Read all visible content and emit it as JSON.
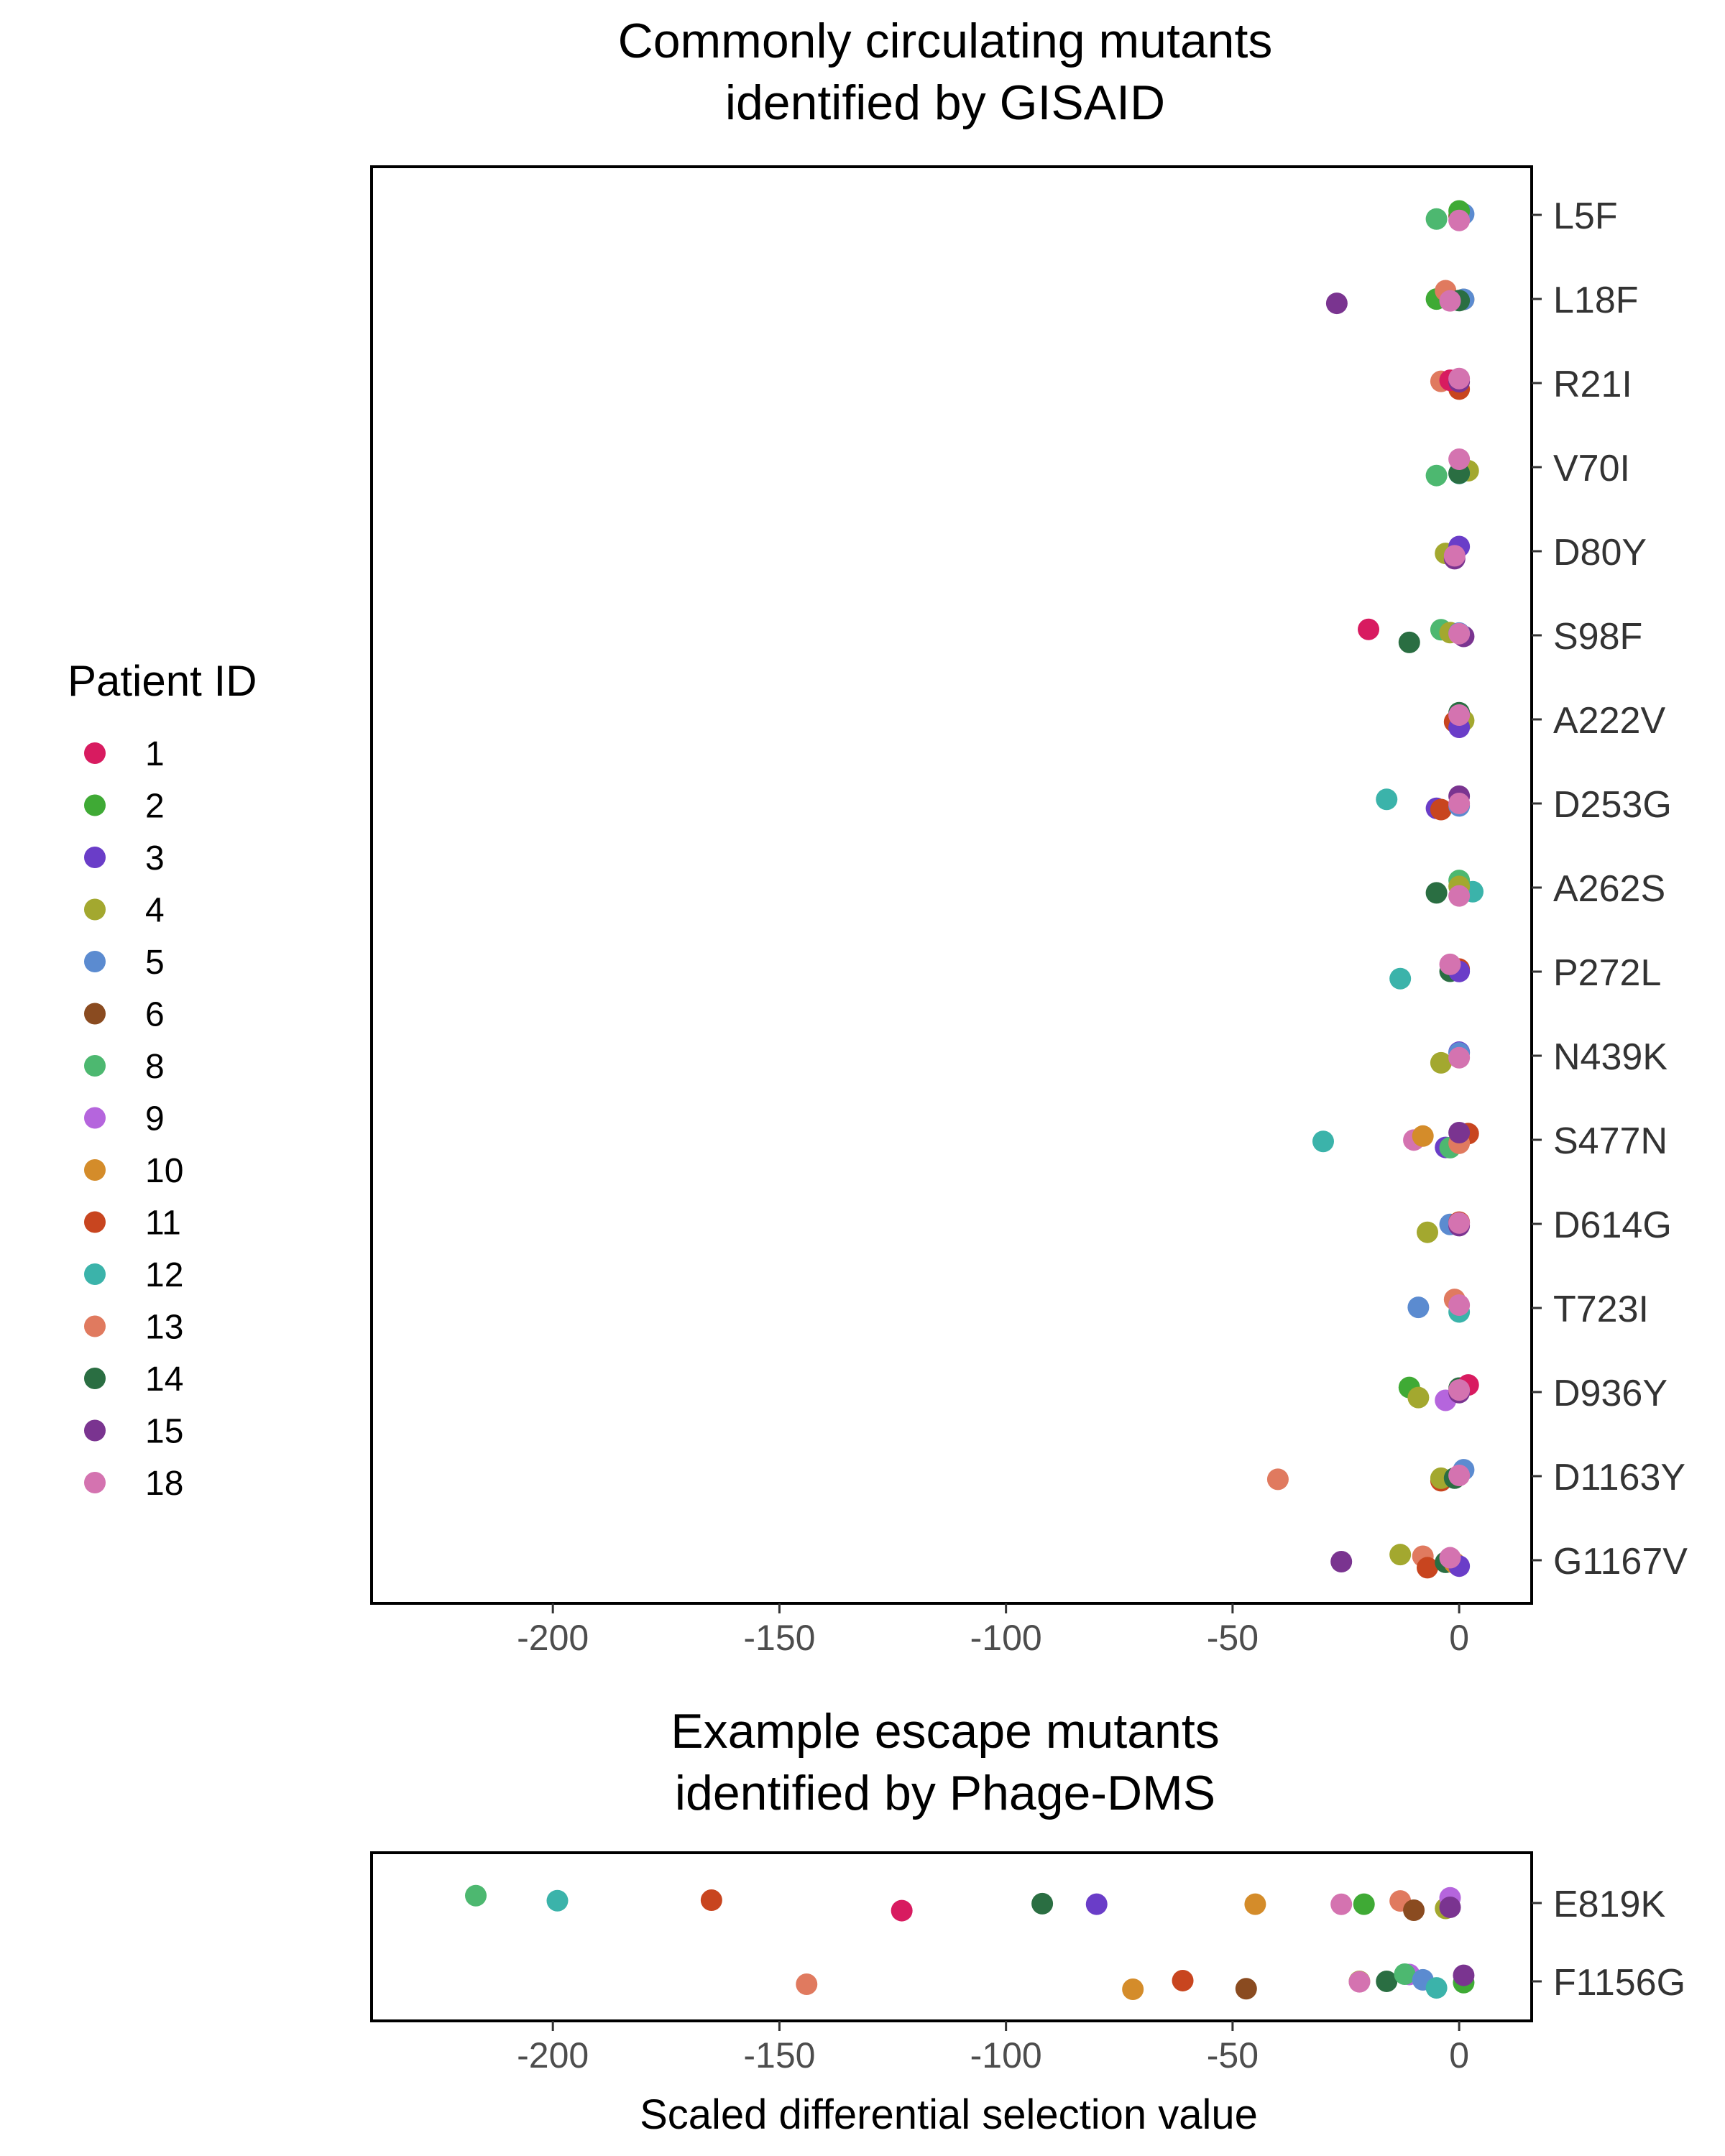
{
  "legend": {
    "title": "Patient ID",
    "items": [
      {
        "id": "1",
        "color": "#D81B60"
      },
      {
        "id": "2",
        "color": "#3FAA35"
      },
      {
        "id": "3",
        "color": "#6A3DC8"
      },
      {
        "id": "4",
        "color": "#A3A82F"
      },
      {
        "id": "5",
        "color": "#5B8BD0"
      },
      {
        "id": "6",
        "color": "#8A4B20"
      },
      {
        "id": "8",
        "color": "#4DB870"
      },
      {
        "id": "9",
        "color": "#B565DD"
      },
      {
        "id": "10",
        "color": "#D48C2A"
      },
      {
        "id": "11",
        "color": "#C8451F"
      },
      {
        "id": "12",
        "color": "#3BB3AA"
      },
      {
        "id": "13",
        "color": "#E07A5F"
      },
      {
        "id": "14",
        "color": "#2A6E42"
      },
      {
        "id": "15",
        "color": "#7A3490"
      },
      {
        "id": "18",
        "color": "#D473B0"
      }
    ]
  },
  "chart_data": [
    {
      "type": "scatter",
      "title": [
        "Commonly circulating mutants",
        "identified by GISAID"
      ],
      "xlabel": "",
      "xlim": [
        -240,
        16
      ],
      "xticks": [
        -200,
        -150,
        -100,
        -50,
        0
      ],
      "xtick_labels": [
        "-200",
        "-150",
        "-100",
        "-50",
        "0"
      ],
      "categories": [
        "L5F",
        "L18F",
        "R21I",
        "V70I",
        "D80Y",
        "S98F",
        "A222V",
        "D253G",
        "A262S",
        "P272L",
        "N439K",
        "S477N",
        "D614G",
        "T723I",
        "D936Y",
        "D1163Y",
        "G1167V"
      ],
      "points": [
        {
          "m": "L5F",
          "p": "8",
          "x": -5
        },
        {
          "m": "L5F",
          "p": "6",
          "x": 0
        },
        {
          "m": "L5F",
          "p": "5",
          "x": 1
        },
        {
          "m": "L5F",
          "p": "2",
          "x": 0
        },
        {
          "m": "L5F",
          "p": "18",
          "x": 0
        },
        {
          "m": "L18F",
          "p": "15",
          "x": -27
        },
        {
          "m": "L18F",
          "p": "2",
          "x": -5
        },
        {
          "m": "L18F",
          "p": "10",
          "x": 1
        },
        {
          "m": "L18F",
          "p": "5",
          "x": 1
        },
        {
          "m": "L18F",
          "p": "13",
          "x": -3
        },
        {
          "m": "L18F",
          "p": "14",
          "x": 0
        },
        {
          "m": "L18F",
          "p": "18",
          "x": -2
        },
        {
          "m": "R21I",
          "p": "13",
          "x": -4
        },
        {
          "m": "R21I",
          "p": "11",
          "x": 0
        },
        {
          "m": "R21I",
          "p": "1",
          "x": -2
        },
        {
          "m": "R21I",
          "p": "15",
          "x": 0
        },
        {
          "m": "R21I",
          "p": "18",
          "x": 0
        },
        {
          "m": "V70I",
          "p": "8",
          "x": -5
        },
        {
          "m": "V70I",
          "p": "4",
          "x": 2
        },
        {
          "m": "V70I",
          "p": "12",
          "x": 0
        },
        {
          "m": "V70I",
          "p": "14",
          "x": 0
        },
        {
          "m": "V70I",
          "p": "18",
          "x": 0
        },
        {
          "m": "D80Y",
          "p": "4",
          "x": -3
        },
        {
          "m": "D80Y",
          "p": "15",
          "x": -1
        },
        {
          "m": "D80Y",
          "p": "3",
          "x": 0
        },
        {
          "m": "D80Y",
          "p": "18",
          "x": -1
        },
        {
          "m": "S98F",
          "p": "1",
          "x": -20
        },
        {
          "m": "S98F",
          "p": "14",
          "x": -11
        },
        {
          "m": "S98F",
          "p": "8",
          "x": -4
        },
        {
          "m": "S98F",
          "p": "4",
          "x": -2
        },
        {
          "m": "S98F",
          "p": "15",
          "x": 1
        },
        {
          "m": "S98F",
          "p": "5",
          "x": 0
        },
        {
          "m": "S98F",
          "p": "18",
          "x": 0
        },
        {
          "m": "A222V",
          "p": "4",
          "x": 1
        },
        {
          "m": "A222V",
          "p": "14",
          "x": 0
        },
        {
          "m": "A222V",
          "p": "11",
          "x": -1
        },
        {
          "m": "A222V",
          "p": "3",
          "x": 0
        },
        {
          "m": "A222V",
          "p": "18",
          "x": 0
        },
        {
          "m": "D253G",
          "p": "12",
          "x": -16
        },
        {
          "m": "D253G",
          "p": "3",
          "x": -5
        },
        {
          "m": "D253G",
          "p": "11",
          "x": -4
        },
        {
          "m": "D253G",
          "p": "5",
          "x": 0
        },
        {
          "m": "D253G",
          "p": "15",
          "x": 0
        },
        {
          "m": "D253G",
          "p": "18",
          "x": 0
        },
        {
          "m": "A262S",
          "p": "14",
          "x": -5
        },
        {
          "m": "A262S",
          "p": "12",
          "x": 3
        },
        {
          "m": "A262S",
          "p": "8",
          "x": 0
        },
        {
          "m": "A262S",
          "p": "4",
          "x": 0
        },
        {
          "m": "A262S",
          "p": "18",
          "x": 0
        },
        {
          "m": "P272L",
          "p": "12",
          "x": -13
        },
        {
          "m": "P272L",
          "p": "14",
          "x": -2
        },
        {
          "m": "P272L",
          "p": "11",
          "x": 0
        },
        {
          "m": "P272L",
          "p": "3",
          "x": 0
        },
        {
          "m": "P272L",
          "p": "18",
          "x": -2
        },
        {
          "m": "N439K",
          "p": "4",
          "x": -4
        },
        {
          "m": "N439K",
          "p": "3",
          "x": 0
        },
        {
          "m": "N439K",
          "p": "5",
          "x": 0
        },
        {
          "m": "N439K",
          "p": "18",
          "x": 0
        },
        {
          "m": "S477N",
          "p": "12",
          "x": -30
        },
        {
          "m": "S477N",
          "p": "18",
          "x": -10
        },
        {
          "m": "S477N",
          "p": "10",
          "x": -8
        },
        {
          "m": "S477N",
          "p": "3",
          "x": -3
        },
        {
          "m": "S477N",
          "p": "8",
          "x": -2
        },
        {
          "m": "S477N",
          "p": "11",
          "x": 2
        },
        {
          "m": "S477N",
          "p": "13",
          "x": 0
        },
        {
          "m": "S477N",
          "p": "15",
          "x": 0
        },
        {
          "m": "D614G",
          "p": "4",
          "x": -7
        },
        {
          "m": "D614G",
          "p": "5",
          "x": -2
        },
        {
          "m": "D614G",
          "p": "11",
          "x": 0
        },
        {
          "m": "D614G",
          "p": "15",
          "x": 0
        },
        {
          "m": "D614G",
          "p": "18",
          "x": 0
        },
        {
          "m": "T723I",
          "p": "5",
          "x": -9
        },
        {
          "m": "T723I",
          "p": "13",
          "x": -1
        },
        {
          "m": "T723I",
          "p": "12",
          "x": 0
        },
        {
          "m": "T723I",
          "p": "18",
          "x": 0
        },
        {
          "m": "D936Y",
          "p": "2",
          "x": -11
        },
        {
          "m": "D936Y",
          "p": "4",
          "x": -9
        },
        {
          "m": "D936Y",
          "p": "9",
          "x": -3
        },
        {
          "m": "D936Y",
          "p": "14",
          "x": 0
        },
        {
          "m": "D936Y",
          "p": "1",
          "x": 2
        },
        {
          "m": "D936Y",
          "p": "15",
          "x": 0
        },
        {
          "m": "D936Y",
          "p": "18",
          "x": 0
        },
        {
          "m": "D1163Y",
          "p": "13",
          "x": -40
        },
        {
          "m": "D1163Y",
          "p": "11",
          "x": -4
        },
        {
          "m": "D1163Y",
          "p": "4",
          "x": -4
        },
        {
          "m": "D1163Y",
          "p": "14",
          "x": -1
        },
        {
          "m": "D1163Y",
          "p": "5",
          "x": 1
        },
        {
          "m": "D1163Y",
          "p": "18",
          "x": 0
        },
        {
          "m": "G1167V",
          "p": "15",
          "x": -26
        },
        {
          "m": "G1167V",
          "p": "4",
          "x": -13
        },
        {
          "m": "G1167V",
          "p": "13",
          "x": -8
        },
        {
          "m": "G1167V",
          "p": "11",
          "x": -7
        },
        {
          "m": "G1167V",
          "p": "14",
          "x": -3
        },
        {
          "m": "G1167V",
          "p": "10",
          "x": -1
        },
        {
          "m": "G1167V",
          "p": "3",
          "x": 0
        },
        {
          "m": "G1167V",
          "p": "18",
          "x": -2
        }
      ]
    },
    {
      "type": "scatter",
      "title": [
        "Example escape mutants",
        "identified by Phage-DMS"
      ],
      "xlabel": "Scaled differential selection value",
      "xlim": [
        -240,
        16
      ],
      "xticks": [
        -200,
        -150,
        -100,
        -50,
        0
      ],
      "xtick_labels": [
        "-200",
        "-150",
        "-100",
        "-50",
        "0"
      ],
      "categories": [
        "E819K",
        "F1156G"
      ],
      "points": [
        {
          "m": "E819K",
          "p": "8",
          "x": -217
        },
        {
          "m": "E819K",
          "p": "12",
          "x": -199
        },
        {
          "m": "E819K",
          "p": "11",
          "x": -165
        },
        {
          "m": "E819K",
          "p": "1",
          "x": -123
        },
        {
          "m": "E819K",
          "p": "14",
          "x": -92
        },
        {
          "m": "E819K",
          "p": "3",
          "x": -80
        },
        {
          "m": "E819K",
          "p": "10",
          "x": -45
        },
        {
          "m": "E819K",
          "p": "18",
          "x": -26
        },
        {
          "m": "E819K",
          "p": "2",
          "x": -21
        },
        {
          "m": "E819K",
          "p": "13",
          "x": -13
        },
        {
          "m": "E819K",
          "p": "6",
          "x": -10
        },
        {
          "m": "E819K",
          "p": "4",
          "x": -3
        },
        {
          "m": "E819K",
          "p": "9",
          "x": -2
        },
        {
          "m": "E819K",
          "p": "15",
          "x": -2
        },
        {
          "m": "F1156G",
          "p": "13",
          "x": -144
        },
        {
          "m": "F1156G",
          "p": "10",
          "x": -72
        },
        {
          "m": "F1156G",
          "p": "11",
          "x": -61
        },
        {
          "m": "F1156G",
          "p": "6",
          "x": -47
        },
        {
          "m": "F1156G",
          "p": "4",
          "x": -22
        },
        {
          "m": "F1156G",
          "p": "18",
          "x": -22
        },
        {
          "m": "F1156G",
          "p": "14",
          "x": -16
        },
        {
          "m": "F1156G",
          "p": "9",
          "x": -11
        },
        {
          "m": "F1156G",
          "p": "8",
          "x": -12
        },
        {
          "m": "F1156G",
          "p": "5",
          "x": -8
        },
        {
          "m": "F1156G",
          "p": "12",
          "x": -5
        },
        {
          "m": "F1156G",
          "p": "2",
          "x": 1
        },
        {
          "m": "F1156G",
          "p": "15",
          "x": 1
        }
      ]
    }
  ]
}
